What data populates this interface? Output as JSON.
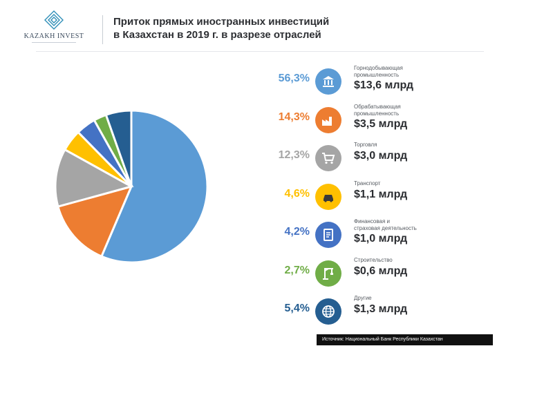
{
  "logo": {
    "name": "KAZAKH INVEST"
  },
  "title": {
    "line1": "Приток прямых иностранных инвестиций",
    "line2": "в Казахстан в 2019 г. в разрезе отраслей"
  },
  "source": "Источник: Национальный Банк  Республики Казахстан",
  "chart_data": {
    "type": "pie",
    "title": "Приток прямых иностранных инвестиций в Казахстан в 2019 г. в разрезе отраслей",
    "slices": [
      {
        "label": "Горнодобывающая промышленность",
        "label_lines": [
          "Горнодобывающая",
          "промышленность"
        ],
        "percent": 56.3,
        "percent_label": "56,3%",
        "amount_label": "$13,6 млрд",
        "color": "#5b9bd5",
        "icon": "building-columns-icon"
      },
      {
        "label": "Обрабатывающая промышленность",
        "label_lines": [
          "Обрабатывающая",
          "промышленность"
        ],
        "percent": 14.3,
        "percent_label": "14,3%",
        "amount_label": "$3,5 млрд",
        "color": "#ed7d31",
        "icon": "factory-icon"
      },
      {
        "label": "Торговля",
        "label_lines": [
          "Торговля"
        ],
        "percent": 12.3,
        "percent_label": "12,3%",
        "amount_label": "$3,0 млрд",
        "color": "#a5a5a5",
        "icon": "shopping-cart-icon"
      },
      {
        "label": "Транспорт",
        "label_lines": [
          "Транспорт"
        ],
        "percent": 4.6,
        "percent_label": "4,6%",
        "amount_label": "$1,1 млрд",
        "color": "#ffc000",
        "icon": "car-icon"
      },
      {
        "label": "Финансовая и страховая деятельность",
        "label_lines": [
          "Финансовая и",
          "страховая деятельность"
        ],
        "percent": 4.2,
        "percent_label": "4,2%",
        "amount_label": "$1,0 млрд",
        "color": "#4472c4",
        "icon": "finance-document-icon"
      },
      {
        "label": "Строительство",
        "label_lines": [
          "Строительство"
        ],
        "percent": 2.7,
        "percent_label": "2,7%",
        "amount_label": "$0,6 млрд",
        "color": "#70ad47",
        "icon": "crane-icon"
      },
      {
        "label": "Другие",
        "label_lines": [
          "Другие"
        ],
        "percent": 5.4,
        "percent_label": "5,4%",
        "amount_label": "$1,3 млрд",
        "color": "#255e91",
        "icon": "globe-icon"
      }
    ]
  }
}
